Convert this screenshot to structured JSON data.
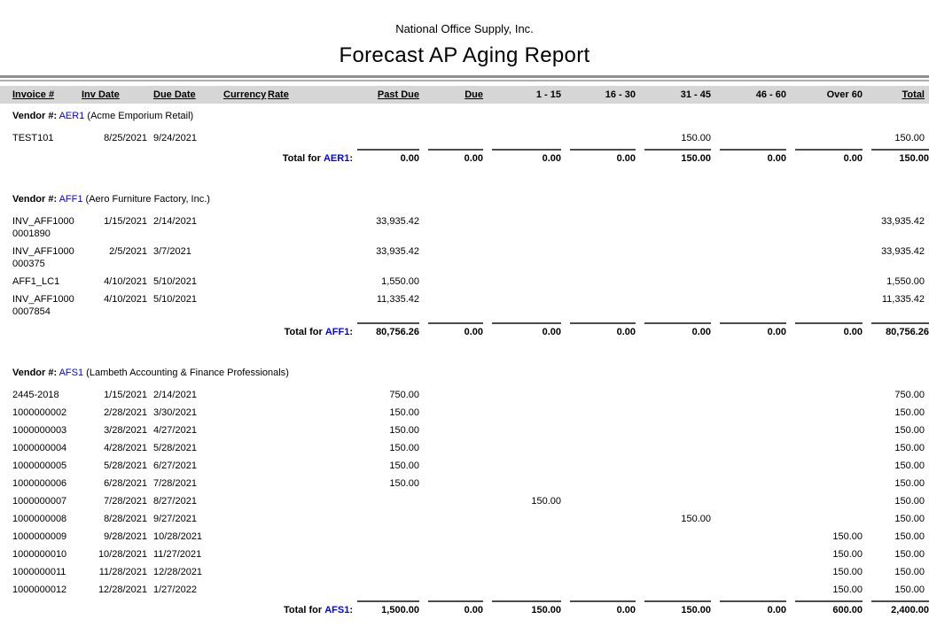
{
  "report": {
    "company": "National Office Supply, Inc.",
    "title": "Forecast AP Aging Report"
  },
  "labels": {
    "vendor_prefix": "Vendor #:",
    "total_prefix": "Total for",
    "colon": ":"
  },
  "columns": [
    "Invoice #",
    "Inv Date",
    "Due Date",
    "Currency",
    "Rate",
    "Past Due",
    "Due",
    "1 - 15",
    "16 - 30",
    "31 - 45",
    "46 - 60",
    "Over 60",
    "Total"
  ],
  "vendors": [
    {
      "code": "AER1",
      "name": "Acme Emporium Retail",
      "rows": [
        {
          "invoice": "TEST101",
          "inv_date": "8/25/2021",
          "due_date": "9/24/2021",
          "amounts": [
            "",
            "",
            "",
            "",
            "150.00",
            "",
            "",
            "150.00"
          ]
        }
      ],
      "totals": [
        "0.00",
        "0.00",
        "0.00",
        "0.00",
        "150.00",
        "0.00",
        "0.00",
        "150.00"
      ]
    },
    {
      "code": "AFF1",
      "name": "Aero Furniture Factory, Inc.",
      "rows": [
        {
          "invoice": "INV_AFF10000001890",
          "inv_date": "1/15/2021",
          "due_date": "2/14/2021",
          "amounts": [
            "33,935.42",
            "",
            "",
            "",
            "",
            "",
            "",
            "33,935.42"
          ]
        },
        {
          "invoice": "INV_AFF1000000375",
          "inv_date": "2/5/2021",
          "due_date": "3/7/2021",
          "amounts": [
            "33,935.42",
            "",
            "",
            "",
            "",
            "",
            "",
            "33,935.42"
          ]
        },
        {
          "invoice": "AFF1_LC1",
          "inv_date": "4/10/2021",
          "due_date": "5/10/2021",
          "amounts": [
            "1,550.00",
            "",
            "",
            "",
            "",
            "",
            "",
            "1,550.00"
          ]
        },
        {
          "invoice": "INV_AFF10000007854",
          "inv_date": "4/10/2021",
          "due_date": "5/10/2021",
          "amounts": [
            "11,335.42",
            "",
            "",
            "",
            "",
            "",
            "",
            "11,335.42"
          ]
        }
      ],
      "totals": [
        "80,756.26",
        "0.00",
        "0.00",
        "0.00",
        "0.00",
        "0.00",
        "0.00",
        "80,756.26"
      ]
    },
    {
      "code": "AFS1",
      "name": "Lambeth Accounting & Finance Professionals",
      "rows": [
        {
          "invoice": "2445-2018",
          "inv_date": "1/15/2021",
          "due_date": "2/14/2021",
          "amounts": [
            "750.00",
            "",
            "",
            "",
            "",
            "",
            "",
            "750.00"
          ]
        },
        {
          "invoice": "1000000002",
          "inv_date": "2/28/2021",
          "due_date": "3/30/2021",
          "amounts": [
            "150.00",
            "",
            "",
            "",
            "",
            "",
            "",
            "150.00"
          ]
        },
        {
          "invoice": "1000000003",
          "inv_date": "3/28/2021",
          "due_date": "4/27/2021",
          "amounts": [
            "150.00",
            "",
            "",
            "",
            "",
            "",
            "",
            "150.00"
          ]
        },
        {
          "invoice": "1000000004",
          "inv_date": "4/28/2021",
          "due_date": "5/28/2021",
          "amounts": [
            "150.00",
            "",
            "",
            "",
            "",
            "",
            "",
            "150.00"
          ]
        },
        {
          "invoice": "1000000005",
          "inv_date": "5/28/2021",
          "due_date": "6/27/2021",
          "amounts": [
            "150.00",
            "",
            "",
            "",
            "",
            "",
            "",
            "150.00"
          ]
        },
        {
          "invoice": "1000000006",
          "inv_date": "6/28/2021",
          "due_date": "7/28/2021",
          "amounts": [
            "150.00",
            "",
            "",
            "",
            "",
            "",
            "",
            "150.00"
          ]
        },
        {
          "invoice": "1000000007",
          "inv_date": "7/28/2021",
          "due_date": "8/27/2021",
          "amounts": [
            "",
            "",
            "150.00",
            "",
            "",
            "",
            "",
            "150.00"
          ]
        },
        {
          "invoice": "1000000008",
          "inv_date": "8/28/2021",
          "due_date": "9/27/2021",
          "amounts": [
            "",
            "",
            "",
            "",
            "150.00",
            "",
            "",
            "150.00"
          ]
        },
        {
          "invoice": "1000000009",
          "inv_date": "9/28/2021",
          "due_date": "10/28/2021",
          "amounts": [
            "",
            "",
            "",
            "",
            "",
            "",
            "150.00",
            "150.00"
          ]
        },
        {
          "invoice": "1000000010",
          "inv_date": "10/28/2021",
          "due_date": "11/27/2021",
          "amounts": [
            "",
            "",
            "",
            "",
            "",
            "",
            "150.00",
            "150.00"
          ]
        },
        {
          "invoice": "1000000011",
          "inv_date": "11/28/2021",
          "due_date": "12/28/2021",
          "amounts": [
            "",
            "",
            "",
            "",
            "",
            "",
            "150.00",
            "150.00"
          ]
        },
        {
          "invoice": "1000000012",
          "inv_date": "12/28/2021",
          "due_date": "1/27/2022",
          "amounts": [
            "",
            "",
            "",
            "",
            "",
            "",
            "150.00",
            "150.00"
          ]
        }
      ],
      "totals": [
        "1,500.00",
        "0.00",
        "150.00",
        "0.00",
        "150.00",
        "0.00",
        "600.00",
        "2,400.00"
      ]
    }
  ]
}
